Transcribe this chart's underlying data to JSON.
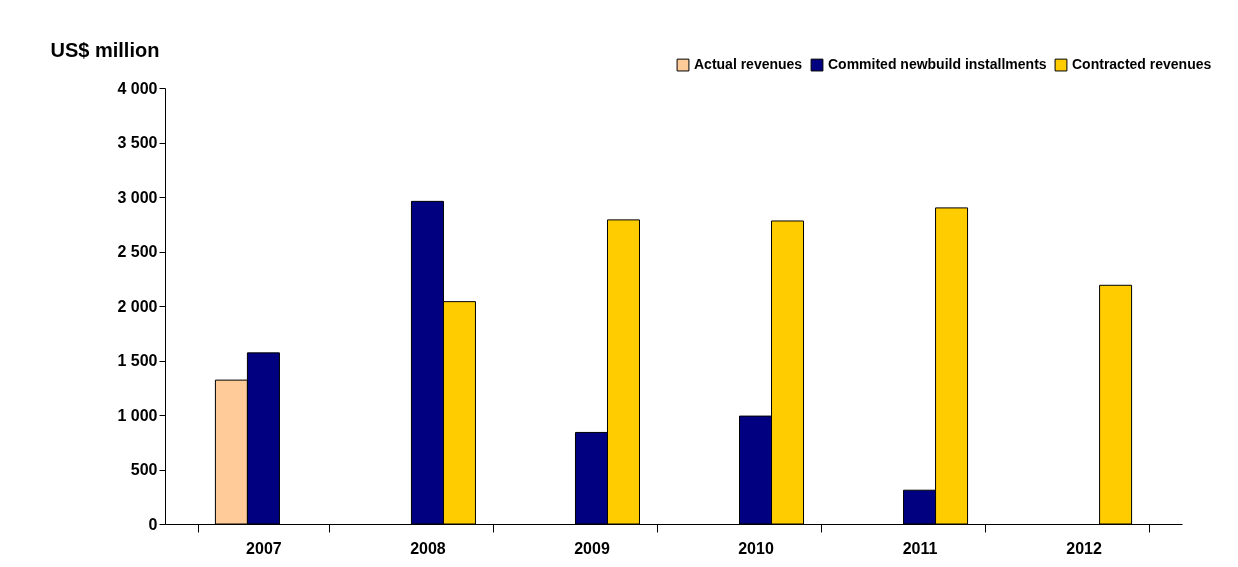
{
  "chart_data": {
    "type": "bar",
    "ylabel": "US$ million",
    "categories": [
      "2007",
      "2008",
      "2009",
      "2010",
      "2011",
      "2012"
    ],
    "series": [
      {
        "name": "Actual revenues",
        "color": "#ffcc99",
        "values": [
          1320,
          null,
          null,
          null,
          null,
          null
        ]
      },
      {
        "name": "Commited newbuild installments",
        "color": "#000080",
        "values": [
          1570,
          2960,
          840,
          990,
          310,
          null
        ]
      },
      {
        "name": "Contracted revenues",
        "color": "#ffcc00",
        "values": [
          null,
          2040,
          2790,
          2780,
          2900,
          2190
        ]
      }
    ],
    "ylim": [
      0,
      4000
    ],
    "yticks": [
      0,
      500,
      {
        "value": 1000,
        "label": "1 000"
      },
      {
        "value": 1500,
        "label": "1 500"
      },
      {
        "value": 2000,
        "label": "2 000"
      },
      {
        "value": 2500,
        "label": "2 500"
      },
      {
        "value": 3000,
        "label": "3 000"
      },
      {
        "value": 3500,
        "label": "3 500"
      },
      {
        "value": 4000,
        "label": "4 000"
      }
    ],
    "grid": false,
    "legend": "top right"
  }
}
